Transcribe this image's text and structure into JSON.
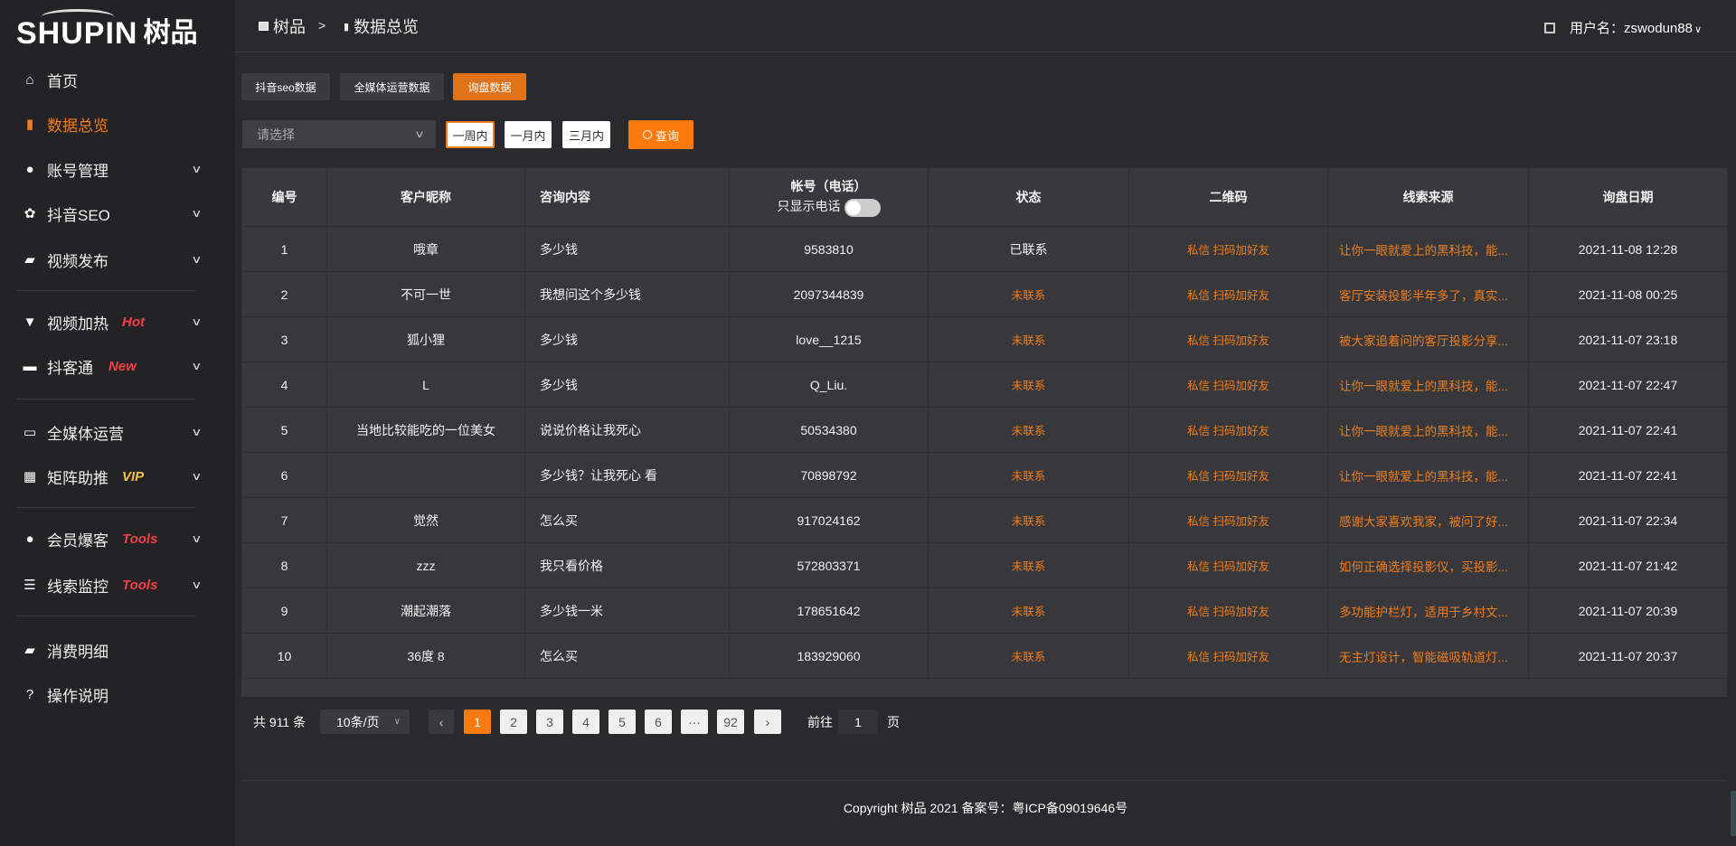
{
  "brand": {
    "logo_en": "SHUPIN",
    "logo_cn": "树品"
  },
  "breadcrumb": [
    {
      "label": "树品",
      "icon": "chart-line-icon"
    },
    {
      "label": "数据总览",
      "icon": "bar-chart-icon"
    }
  ],
  "breadcrumb_sep": ">",
  "user": {
    "label": "用户名：zswodun88"
  },
  "sidebar": {
    "items": [
      {
        "label": "首页",
        "icon": "home-icon",
        "active": false
      },
      {
        "label": "数据总览",
        "icon": "bar-chart-icon",
        "active": true
      },
      {
        "label": "账号管理",
        "icon": "user-icon",
        "chevron": true
      },
      {
        "label": "抖音SEO",
        "icon": "gear-icon",
        "chevron": true
      },
      {
        "label": "视频发布",
        "icon": "video-camera-icon",
        "chevron": true
      },
      {
        "label": "视频加热",
        "icon": "brush-icon",
        "badge": "Hot",
        "chevron": true
      },
      {
        "label": "抖客通",
        "icon": "chat-icon",
        "badge": "New",
        "chevron": true
      },
      {
        "label": "全媒体运营",
        "icon": "monitor-icon",
        "chevron": true
      },
      {
        "label": "矩阵助推",
        "icon": "grid-icon",
        "badge": "VIP",
        "chevron": true
      },
      {
        "label": "会员爆客",
        "icon": "user-icon",
        "badge": "Tools",
        "chevron": true
      },
      {
        "label": "线索监控",
        "icon": "sliders-icon",
        "badge": "Tools",
        "chevron": true
      },
      {
        "label": "消费明细",
        "icon": "wallet-icon"
      },
      {
        "label": "操作说明",
        "icon": "help-icon"
      }
    ]
  },
  "colors": {
    "accent": "#fc7a0c",
    "hot": "#f2404a",
    "vip": "#f5c04a"
  },
  "tabs": [
    {
      "label": "抖音seo数据"
    },
    {
      "label": "全媒体运营数据"
    },
    {
      "label": "询盘数据",
      "active": true
    }
  ],
  "filters": {
    "select_placeholder": "请选择",
    "ranges": [
      "一周内",
      "一月内",
      "三月内"
    ],
    "active_range": "一周内",
    "query": "查询"
  },
  "table": {
    "headers": [
      "编号",
      "客户昵称",
      "咨询内容",
      "帐号（电话）",
      "状态",
      "二维码",
      "线索来源",
      "询盘日期"
    ],
    "phone_only_label": "只显示电话",
    "phone_only": false,
    "rows": [
      {
        "id": "1",
        "name": "哦章",
        "content": "多少钱",
        "account": "9583810",
        "status": "已联系",
        "qr": "私信 扫码加好友",
        "source": "让你一眼就爱上的黑科技，能...",
        "date": "2021-11-08 12:28"
      },
      {
        "id": "2",
        "name": "不可一世",
        "content": "我想问这个多少钱",
        "account": "2097344839",
        "status": "未联系",
        "qr": "私信 扫码加好友",
        "source": "客厅安装投影半年多了，真实...",
        "date": "2021-11-08 00:25"
      },
      {
        "id": "3",
        "name": "狐小狸",
        "content": "多少钱",
        "account": "love__1215",
        "status": "未联系",
        "qr": "私信 扫码加好友",
        "source": "被大家追着问的客厅投影分享...",
        "date": "2021-11-07 23:18"
      },
      {
        "id": "4",
        "name": "L",
        "content": "多少钱",
        "account": "Q_Liu.",
        "status": "未联系",
        "qr": "私信 扫码加好友",
        "source": "让你一眼就爱上的黑科技，能...",
        "date": "2021-11-07 22:47"
      },
      {
        "id": "5",
        "name": "当地比较能吃的一位美女",
        "content": "说说价格让我死心",
        "account": "50534380",
        "status": "未联系",
        "qr": "私信 扫码加好友",
        "source": "让你一眼就爱上的黑科技，能...",
        "date": "2021-11-07 22:41"
      },
      {
        "id": "6",
        "name": "",
        "content": "多少钱？让我死心 看",
        "account": "70898792",
        "status": "未联系",
        "qr": "私信 扫码加好友",
        "source": "让你一眼就爱上的黑科技，能...",
        "date": "2021-11-07 22:41"
      },
      {
        "id": "7",
        "name": "觉然",
        "content": "怎么买",
        "account": "917024162",
        "status": "未联系",
        "qr": "私信 扫码加好友",
        "source": "感谢大家喜欢我家，被问了好...",
        "date": "2021-11-07 22:34"
      },
      {
        "id": "8",
        "name": "zzz",
        "content": "我只看价格",
        "account": "572803371",
        "status": "未联系",
        "qr": "私信 扫码加好友",
        "source": "如何正确选择投影仪，买投影...",
        "date": "2021-11-07 21:42"
      },
      {
        "id": "9",
        "name": "潮起潮落",
        "content": "多少钱一米",
        "account": "178651642",
        "status": "未联系",
        "qr": "私信 扫码加好友",
        "source": "多功能护栏灯，适用于乡村文...",
        "date": "2021-11-07 20:39"
      },
      {
        "id": "10",
        "name": "36度 8",
        "content": "怎么买",
        "account": "183929060",
        "status": "未联系",
        "qr": "私信 扫码加好友",
        "source": "无主灯设计，智能磁吸轨道灯...",
        "date": "2021-11-07 20:37"
      }
    ]
  },
  "pagination": {
    "total": "共 911 条",
    "page_size": "10条/页",
    "pages": [
      "1",
      "2",
      "3",
      "4",
      "5",
      "6",
      "···",
      "92"
    ],
    "current": "1",
    "goto_label": "前往",
    "goto_value": "1",
    "goto_suffix": "页"
  },
  "footer": {
    "copyright": "Copyright 树品 2021 备案号：粤ICP备09019646号"
  }
}
